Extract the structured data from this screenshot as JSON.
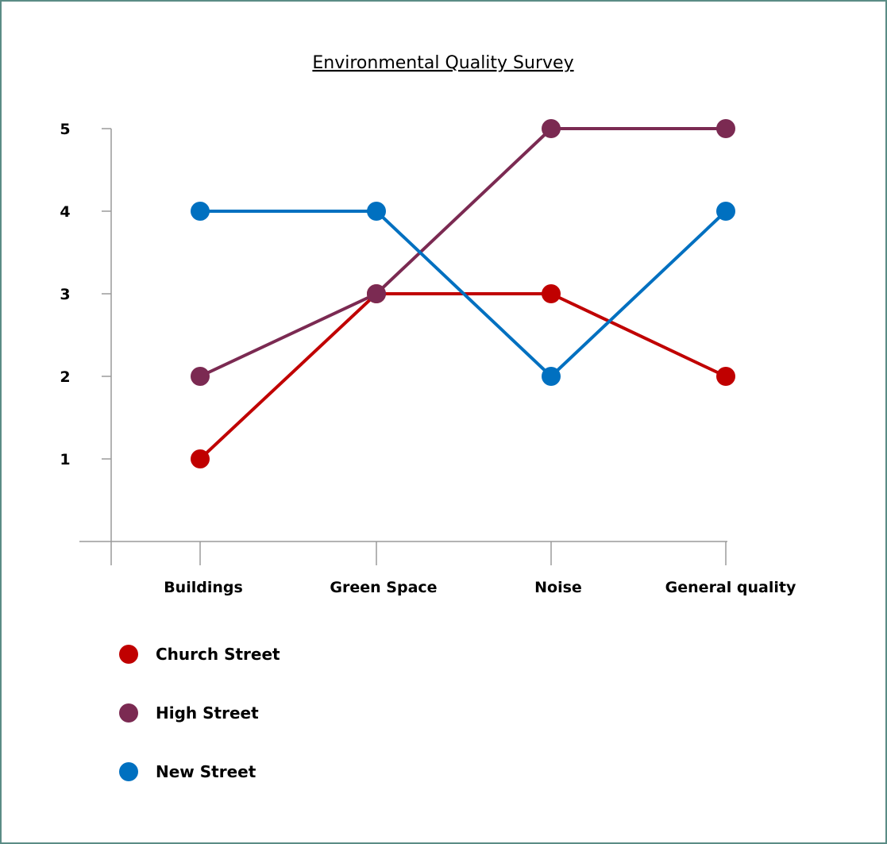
{
  "chart_data": {
    "type": "line",
    "title": "Environmental Quality Survey",
    "xlabel": "",
    "ylabel": "",
    "categories": [
      "Buildings",
      "Green Space",
      "Noise",
      "General quality"
    ],
    "y_ticks": [
      "1",
      "2",
      "3",
      "4",
      "5"
    ],
    "ylim": [
      0,
      5
    ],
    "grid": false,
    "legend_position": "bottom-left",
    "series": [
      {
        "name": "Church Street",
        "color": "#c00000",
        "values": [
          1,
          3,
          3,
          2
        ]
      },
      {
        "name": "High Street",
        "color": "#7b2a52",
        "values": [
          2,
          3,
          5,
          5
        ]
      },
      {
        "name": "New Street",
        "color": "#0070c0",
        "values": [
          4,
          4,
          2,
          4
        ]
      }
    ]
  }
}
